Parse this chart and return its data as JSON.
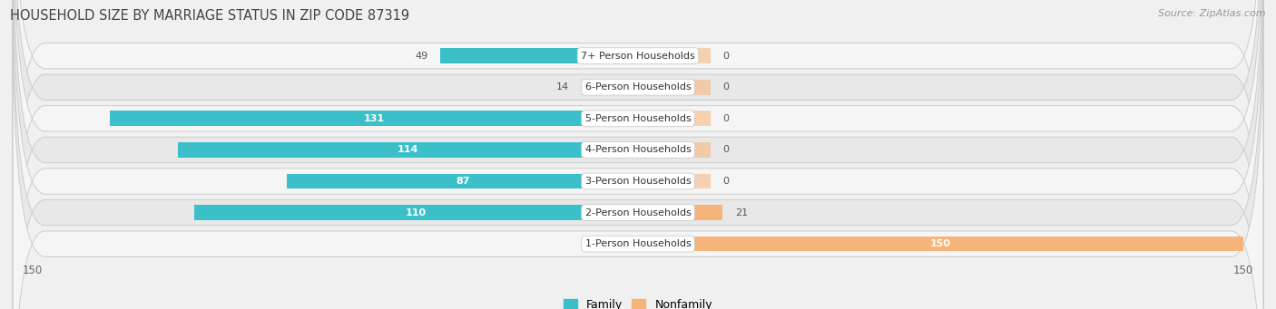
{
  "title": "HOUSEHOLD SIZE BY MARRIAGE STATUS IN ZIP CODE 87319",
  "source": "Source: ZipAtlas.com",
  "categories": [
    "7+ Person Households",
    "6-Person Households",
    "5-Person Households",
    "4-Person Households",
    "3-Person Households",
    "2-Person Households",
    "1-Person Households"
  ],
  "family_values": [
    49,
    14,
    131,
    114,
    87,
    110,
    0
  ],
  "nonfamily_values": [
    0,
    0,
    0,
    0,
    0,
    21,
    150
  ],
  "family_color": "#3bbfc9",
  "nonfamily_color": "#f5b47a",
  "bar_height": 0.48,
  "xlim": [
    -155,
    155
  ],
  "row_bg_colors": [
    "#f5f5f5",
    "#e8e8e8"
  ],
  "row_border_color": "#cccccc",
  "title_fontsize": 10.5,
  "source_fontsize": 8,
  "label_fontsize": 8,
  "value_fontsize": 8,
  "legend_fontsize": 9,
  "inside_label_threshold": 60
}
